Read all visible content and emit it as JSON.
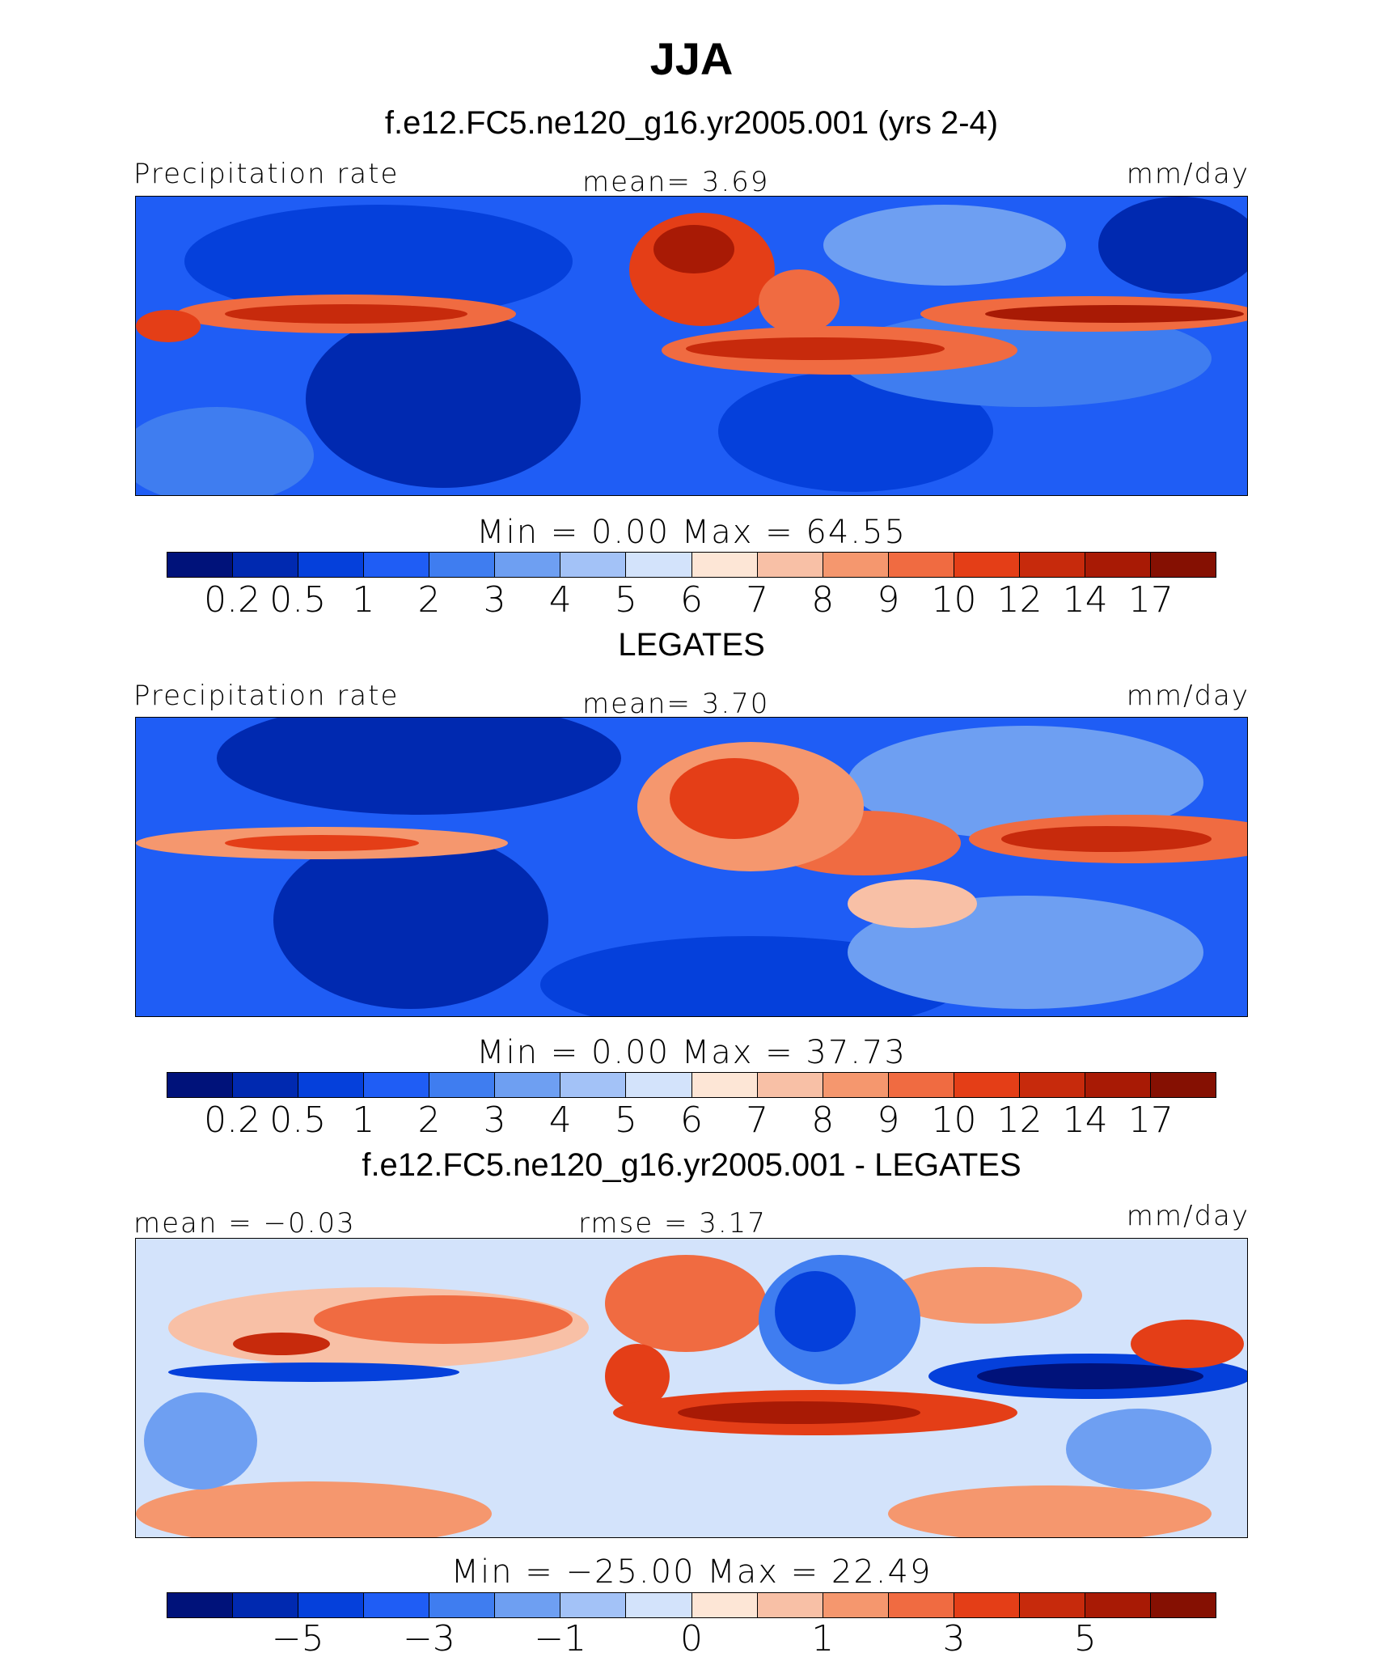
{
  "title": "JJA",
  "panels": [
    {
      "heading": "f.e12.FC5.ne120_g16.yr2005.001 (yrs 2-4)",
      "left_label": "Precipitation rate",
      "center_label": "mean=   3.69",
      "right_label": "mm/day",
      "minmax": "Min  =    0.00  Max  =   64.55",
      "ticks": [
        "0.2",
        "0.5",
        "1",
        "2",
        "3",
        "4",
        "5",
        "6",
        "7",
        "8",
        "9",
        "10",
        "12",
        "14",
        "17"
      ]
    },
    {
      "heading": "LEGATES",
      "left_label": "Precipitation rate",
      "center_label": "mean=   3.70",
      "right_label": "mm/day",
      "minmax": "Min  =    0.00  Max  =   37.73",
      "ticks": [
        "0.2",
        "0.5",
        "1",
        "2",
        "3",
        "4",
        "5",
        "6",
        "7",
        "8",
        "9",
        "10",
        "12",
        "14",
        "17"
      ]
    },
    {
      "heading": "f.e12.FC5.ne120_g16.yr2005.001 - LEGATES",
      "left_label": "mean =  −0.03",
      "center_label": "rmse =   3.17",
      "right_label": "mm/day",
      "minmax": "Min  = −25.00  Max  =   22.49",
      "ticks": [
        "−5",
        "−3",
        "−1",
        "0",
        "1",
        "3",
        "5"
      ]
    }
  ],
  "colorbar_colors": [
    "#00127a",
    "#0029b0",
    "#0540db",
    "#1f5df5",
    "#3f7df0",
    "#6e9ff2",
    "#a3c2f7",
    "#d3e3fb",
    "#fde6d6",
    "#f8c0a6",
    "#f5976e",
    "#f06b41",
    "#e43e17",
    "#c72a0c",
    "#a81a05",
    "#851002"
  ],
  "diff_colorbar_colors": [
    "#00127a",
    "#0029b0",
    "#0540db",
    "#1f5df5",
    "#3f7df0",
    "#6e9ff2",
    "#a3c2f7",
    "#d3e3fb",
    "#fde6d6",
    "#f8c0a6",
    "#f5976e",
    "#f06b41",
    "#e43e17",
    "#c72a0c",
    "#a81a05",
    "#851002"
  ]
}
